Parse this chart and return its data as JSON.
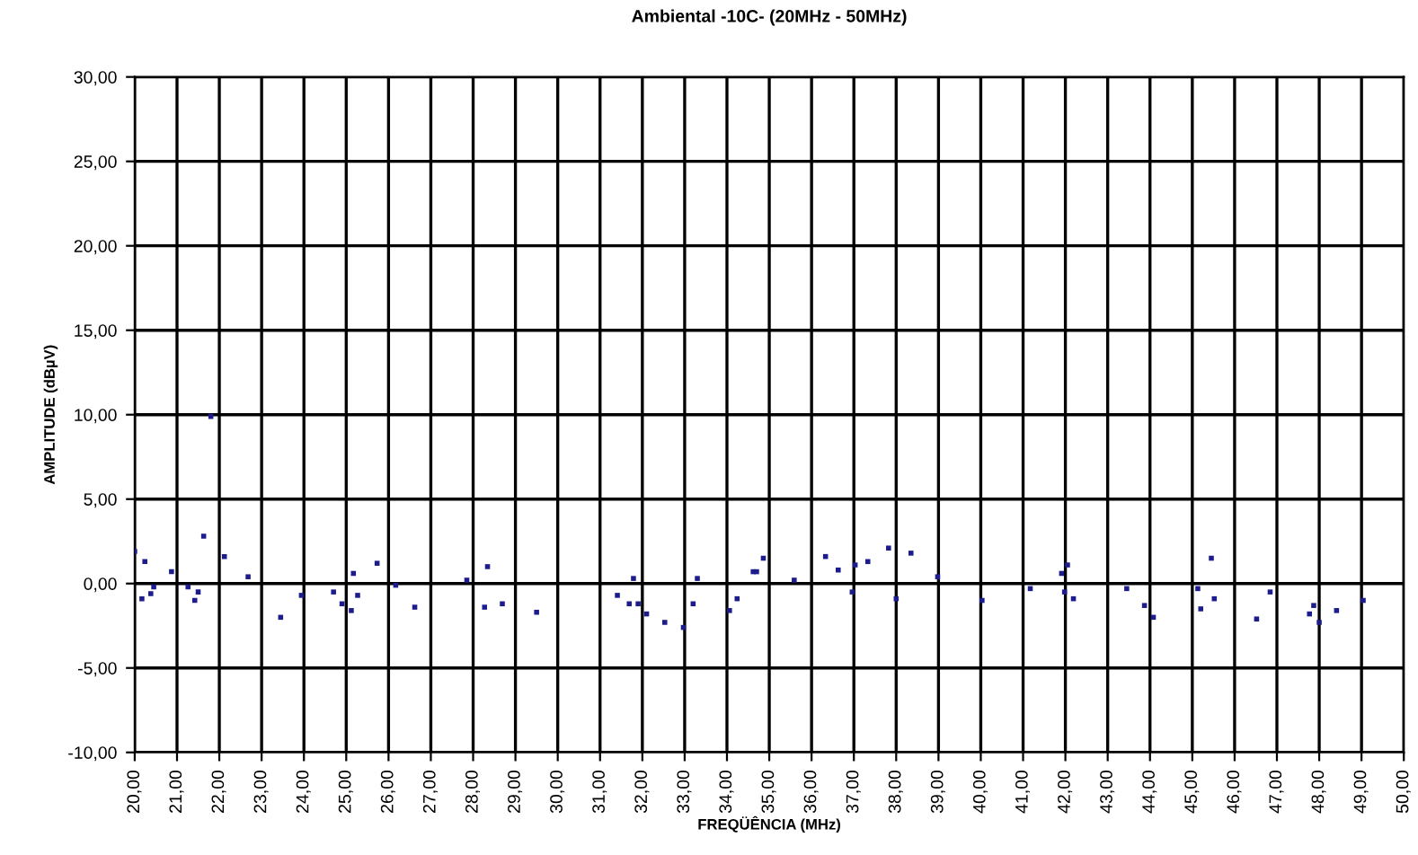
{
  "chart_data": {
    "type": "scatter",
    "title": "Ambiental -10C- (20MHz - 50MHz)",
    "xlabel": "FREQÜÊNCIA (MHz)",
    "ylabel": "AMPLITUDE (dBµV)",
    "xlim": [
      20,
      50
    ],
    "xticks": [
      {
        "value": 20,
        "label": "20,00"
      },
      {
        "value": 21,
        "label": "21,00"
      },
      {
        "value": 22,
        "label": "22,00"
      },
      {
        "value": 23,
        "label": "23,00"
      },
      {
        "value": 24,
        "label": "24,00"
      },
      {
        "value": 25,
        "label": "25,00"
      },
      {
        "value": 26,
        "label": "26,00"
      },
      {
        "value": 27,
        "label": "27,00"
      },
      {
        "value": 28,
        "label": "28,00"
      },
      {
        "value": 29,
        "label": "29,00"
      },
      {
        "value": 30,
        "label": "30,00"
      },
      {
        "value": 31,
        "label": "31,00"
      },
      {
        "value": 32,
        "label": "32,00"
      },
      {
        "value": 33,
        "label": "33,00"
      },
      {
        "value": 34,
        "label": "34,00"
      },
      {
        "value": 35,
        "label": "35,00"
      },
      {
        "value": 36,
        "label": "36,00"
      },
      {
        "value": 37,
        "label": "37,00"
      },
      {
        "value": 38,
        "label": "38,00"
      },
      {
        "value": 39,
        "label": "39,00"
      },
      {
        "value": 40,
        "label": "40,00"
      },
      {
        "value": 41,
        "label": "41,00"
      },
      {
        "value": 42,
        "label": "42,00"
      },
      {
        "value": 43,
        "label": "43,00"
      },
      {
        "value": 44,
        "label": "44,00"
      },
      {
        "value": 45,
        "label": "45,00"
      },
      {
        "value": 46,
        "label": "46,00"
      },
      {
        "value": 47,
        "label": "47,00"
      },
      {
        "value": 48,
        "label": "48,00"
      },
      {
        "value": 49,
        "label": "49,00"
      },
      {
        "value": 50,
        "label": "50,00"
      }
    ],
    "ylim": [
      -10,
      30
    ],
    "yticks": [
      {
        "value": -10,
        "label": "-10,00"
      },
      {
        "value": -5,
        "label": "-5,00"
      },
      {
        "value": 0,
        "label": "0,00"
      },
      {
        "value": 5,
        "label": "5,00"
      },
      {
        "value": 10,
        "label": "10,00"
      },
      {
        "value": 15,
        "label": "15,00"
      },
      {
        "value": 20,
        "label": "20,00"
      },
      {
        "value": 25,
        "label": "25,00"
      },
      {
        "value": 30,
        "label": "30,00"
      }
    ],
    "grid": true,
    "marker": "square",
    "series": [
      {
        "color": "#1c1c8c",
        "x": [
          20.0,
          20.17,
          20.24,
          20.38,
          20.45,
          20.87,
          21.26,
          21.42,
          21.5,
          21.63,
          21.8,
          22.12,
          22.68,
          23.45,
          23.94,
          24.7,
          24.9,
          25.12,
          25.17,
          25.27,
          25.73,
          26.17,
          26.62,
          27.85,
          28.27,
          28.34,
          28.69,
          29.5,
          31.41,
          31.69,
          31.79,
          31.9,
          32.1,
          32.53,
          32.97,
          33.2,
          33.3,
          34.06,
          34.24,
          34.62,
          34.7,
          34.86,
          35.59,
          36.33,
          36.63,
          36.96,
          37.03,
          37.33,
          37.82,
          38.0,
          38.35,
          38.98,
          40.03,
          41.17,
          41.91,
          41.98,
          42.05,
          42.19,
          43.45,
          43.87,
          44.08,
          45.13,
          45.2,
          45.45,
          45.52,
          46.52,
          46.84,
          47.77,
          47.87,
          48.0,
          48.41,
          49.04
        ],
        "values": [
          1.9,
          -0.9,
          1.3,
          -0.6,
          -0.2,
          0.7,
          -0.2,
          -1.0,
          -0.5,
          2.8,
          9.9,
          1.6,
          0.4,
          -2.0,
          -0.7,
          -0.5,
          -1.2,
          -1.6,
          0.6,
          -0.7,
          1.2,
          -0.1,
          -1.4,
          0.2,
          -1.4,
          1.0,
          -1.2,
          -1.7,
          -0.7,
          -1.2,
          0.3,
          -1.2,
          -1.8,
          -2.3,
          -2.6,
          -1.2,
          0.3,
          -1.6,
          -0.9,
          0.7,
          0.7,
          1.5,
          0.2,
          1.6,
          0.8,
          -0.5,
          1.1,
          1.3,
          2.1,
          -0.9,
          1.8,
          0.4,
          -1.0,
          -0.3,
          0.6,
          -0.5,
          1.1,
          -0.9,
          -0.3,
          -1.3,
          -2.0,
          -0.3,
          -1.5,
          1.5,
          -0.9,
          -2.1,
          -0.5,
          -1.8,
          -1.3,
          -2.3,
          -1.6,
          -1.0
        ]
      }
    ]
  }
}
